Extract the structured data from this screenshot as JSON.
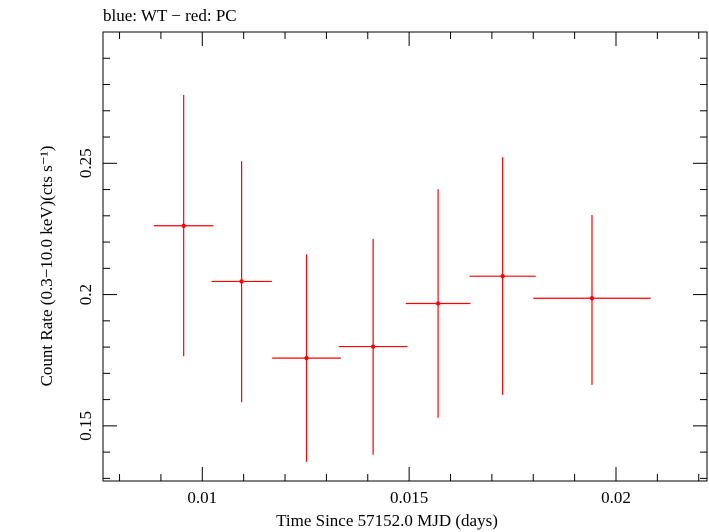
{
  "chart_data": {
    "type": "scatter",
    "title": "blue: WT − red: PC",
    "xlabel": "Time Since 57152.0 MJD (days)",
    "ylabel": "Count Rate (0.3−10.0 keV)(cts s⁻¹)",
    "xlim": [
      0.0076,
      0.0222
    ],
    "ylim": [
      0.129,
      0.3
    ],
    "x_ticks": [
      0.01,
      0.015,
      0.02
    ],
    "x_tick_labels": [
      "0.01",
      "0.015",
      "0.02"
    ],
    "y_ticks": [
      0.15,
      0.2,
      0.25
    ],
    "y_tick_labels": [
      "0.15",
      "0.2",
      "0.25"
    ],
    "grid": false,
    "series": [
      {
        "name": "PC",
        "color": "#ff0000",
        "points": [
          {
            "x": 0.00955,
            "y": 0.2262,
            "xerr": 0.00072,
            "yerr_low": 0.0497,
            "yerr_high": 0.0498
          },
          {
            "x": 0.01095,
            "y": 0.205,
            "xerr": 0.00073,
            "yerr_low": 0.046,
            "yerr_high": 0.0458
          },
          {
            "x": 0.01252,
            "y": 0.1758,
            "xerr": 0.00083,
            "yerr_low": 0.0395,
            "yerr_high": 0.0395
          },
          {
            "x": 0.01413,
            "y": 0.1802,
            "xerr": 0.00083,
            "yerr_low": 0.0412,
            "yerr_high": 0.041
          },
          {
            "x": 0.0157,
            "y": 0.1966,
            "xerr": 0.00078,
            "yerr_low": 0.0435,
            "yerr_high": 0.0435
          },
          {
            "x": 0.01726,
            "y": 0.207,
            "xerr": 0.0008,
            "yerr_low": 0.0452,
            "yerr_high": 0.0453
          },
          {
            "x": 0.01942,
            "y": 0.1986,
            "xerr": 0.00142,
            "yerr_low": 0.033,
            "yerr_high": 0.0317
          }
        ]
      }
    ]
  }
}
